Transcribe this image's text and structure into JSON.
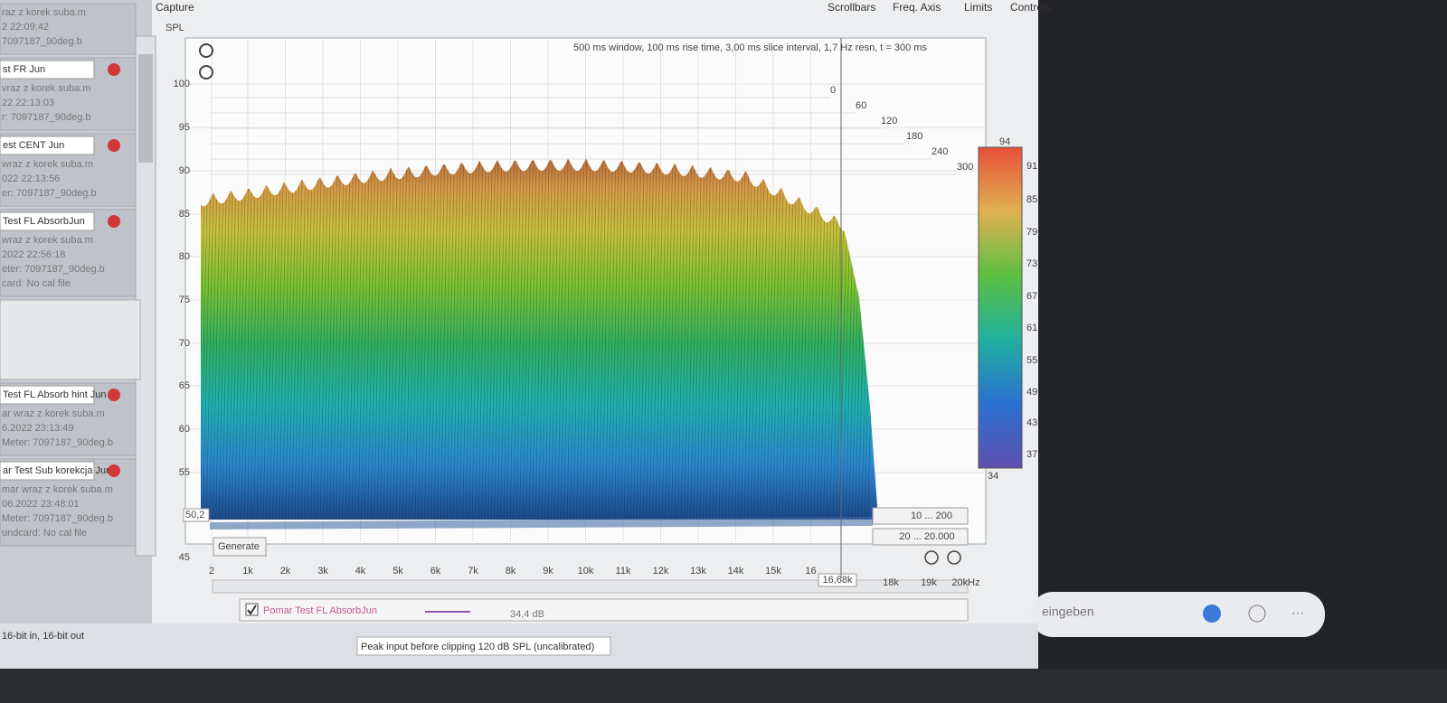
{
  "menu": [
    "Capture",
    "Scrollbars",
    "Freq. Axis",
    "Limits",
    "Controls"
  ],
  "sidebar": [
    {
      "name": null,
      "lines": [
        "raz z korek suba.m",
        "2 22:09:42",
        "7097187_90deg.b"
      ]
    },
    {
      "name": "st FR Jun",
      "lines": [
        "vraz z korek suba.m",
        "22 22:13:03",
        "r: 7097187_90deg.b"
      ]
    },
    {
      "name": "est CENT Jun",
      "lines": [
        "wraz z korek suba.m",
        "022 22:13:56",
        "er: 7097187_90deg.b"
      ]
    },
    {
      "name": "Test  FL AbsorbJun",
      "lines": [
        " wraz z korek suba.m",
        "2022 22:56:18",
        "eter: 7097187_90deg.b",
        "card: No cal file"
      ]
    },
    {
      "name": "Test FL Absorb hint Jun",
      "lines": [
        "ar wraz z korek suba.m",
        "6.2022 23:13:49",
        "Meter: 7097187_90deg.b"
      ]
    },
    {
      "name": "ar Test Sub korekcja Jun",
      "lines": [
        "mar wraz z korek suba.m",
        "06.2022 23:48:01",
        "Meter: 7097187_90deg.b",
        "undcard: No cal file"
      ]
    }
  ],
  "plot": {
    "y_label": "SPL",
    "header": "500 ms window, 100 ms rise time, 3,00 ms slice interval, 1,7 Hz resn, t = 300 ms",
    "yticks": [
      "100",
      "95",
      "90",
      "85",
      "80",
      "75",
      "70",
      "65",
      "60",
      "55",
      "45"
    ],
    "y_readout": "50,2",
    "xticks": [
      "2",
      "1k",
      "2k",
      "3k",
      "4k",
      "5k",
      "6k",
      "7k",
      "8k",
      "9k",
      "10k",
      "11k",
      "12k",
      "13k",
      "14k",
      "15k",
      "16"
    ],
    "x_readout": "16,68k",
    "xticks_right": [
      "18k",
      "19k",
      "20kHz"
    ],
    "time_ticks": [
      "0",
      "60",
      "120",
      "180",
      "240",
      "300"
    ],
    "colorbar": [
      "94",
      "91",
      "85",
      "79",
      "73",
      "67",
      "61",
      "55",
      "49",
      "43",
      "37",
      "34"
    ],
    "range_time": "10 ... 200",
    "range_freq": "20 ... 20.000",
    "generate": "Generate"
  },
  "legend": {
    "name": "Pomar Test  FL AbsorbJun",
    "value": "34,4 dB"
  },
  "status": {
    "bits": "16-bit in, 16-bit out",
    "peak": "Peak input before clipping 120 dB SPL (uncalibrated)"
  },
  "search": "eingeben"
}
